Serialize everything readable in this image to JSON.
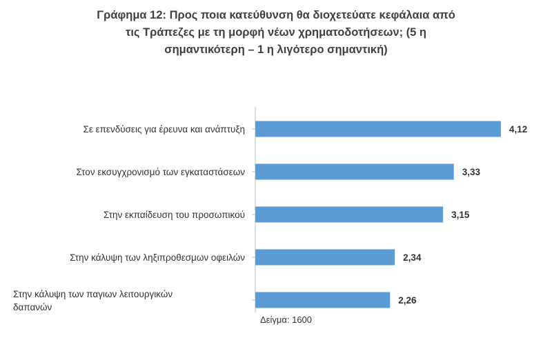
{
  "chart_data": {
    "type": "bar",
    "orientation": "horizontal",
    "title_lines": [
      "Γράφημα 12:  Προς ποια κατεύθυνση θα διοχετεύατε κεφάλαια από",
      "τις Τράπεζες με τη μορφή νέων χρηματοδοτήσεων; (5 η",
      "σημαντικότερη – 1 η λιγότερο σημαντική)"
    ],
    "categories": [
      [
        "Σε επενδύσεις για έρευνα και ανάπτυξη"
      ],
      [
        "Στον εκσυγχρονισμό των εγκαταστάσεων"
      ],
      [
        "Στην εκπαίδευση του προσωπικού"
      ],
      [
        "Στην κάλυψη των ληξιπροθεσμων οφειλών"
      ],
      [
        "Στην  κάλυψη  των  παγιων  λειτουργικών",
        "δαπανών"
      ]
    ],
    "values": [
      4.12,
      3.33,
      3.15,
      2.34,
      2.26
    ],
    "value_labels": [
      "4,12",
      "3,33",
      "3,15",
      "2,34",
      "2,26"
    ],
    "bar_color": "#5b9bd5",
    "axis_color": "#bfbfbf",
    "grid": false,
    "legend": "none",
    "xlim": [
      0,
      5
    ]
  },
  "note": "Δείγμα: 1600"
}
